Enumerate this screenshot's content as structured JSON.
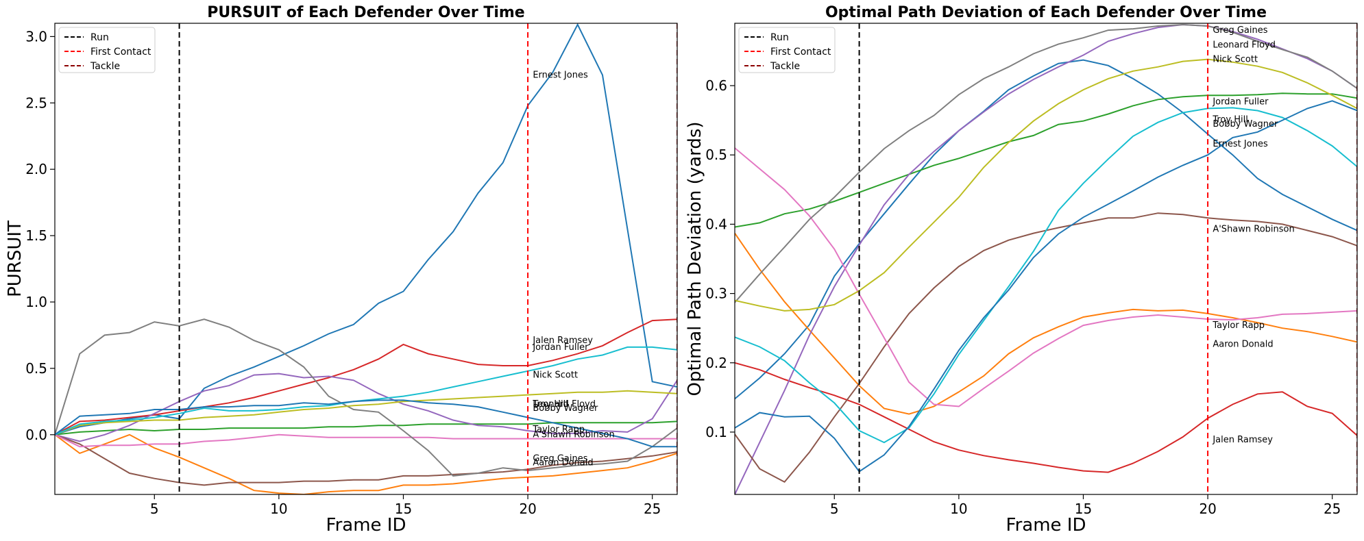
{
  "chart_data": [
    {
      "type": "line",
      "title": "PURSUIT of Each Defender Over Time",
      "xlabel": "Frame ID",
      "ylabel": "PURSUIT",
      "xlim": [
        1,
        26
      ],
      "ylim": [
        -0.45,
        3.1
      ],
      "xticks": [
        5,
        10,
        15,
        20,
        25
      ],
      "yticks": [
        0.0,
        0.5,
        1.0,
        1.5,
        2.0,
        2.5,
        3.0
      ],
      "ytick_labels": [
        "0.0",
        "0.5",
        "1.0",
        "1.5",
        "2.0",
        "2.5",
        "3.0"
      ],
      "legend": {
        "placement": "top-left",
        "entries": [
          {
            "label": "Run",
            "color": "#000000"
          },
          {
            "label": "First Contact",
            "color": "#ff0000"
          },
          {
            "label": "Tackle",
            "color": "#8b0000"
          }
        ]
      },
      "vlines": [
        {
          "label": "Run",
          "x": 6,
          "color": "#000000"
        },
        {
          "label": "First Contact",
          "x": 20,
          "color": "#ff0000"
        },
        {
          "label": "Tackle",
          "x": 26,
          "color": "#8b0000"
        }
      ],
      "x": [
        1,
        2,
        3,
        4,
        5,
        6,
        7,
        8,
        9,
        10,
        11,
        12,
        13,
        14,
        15,
        16,
        17,
        18,
        19,
        20,
        21,
        22,
        23,
        24,
        25,
        26
      ],
      "series": [
        {
          "color": "#1f77b4",
          "values": [
            0,
            0.06,
            0.09,
            0.12,
            0.15,
            0.12,
            0.35,
            0.44,
            0.51,
            0.59,
            0.67,
            0.76,
            0.83,
            0.99,
            1.08,
            1.32,
            1.53,
            1.82,
            2.05,
            2.48,
            2.73,
            3.09,
            2.71,
            1.55,
            0.4,
            0.36
          ]
        },
        {
          "color": "#ff7f0e",
          "values": [
            0,
            -0.14,
            -0.07,
            0.0,
            -0.1,
            -0.17,
            -0.25,
            -0.33,
            -0.42,
            -0.44,
            -0.45,
            -0.43,
            -0.42,
            -0.42,
            -0.38,
            -0.38,
            -0.37,
            -0.35,
            -0.33,
            -0.32,
            -0.31,
            -0.29,
            -0.27,
            -0.25,
            -0.2,
            -0.14
          ]
        },
        {
          "color": "#2ca02c",
          "values": [
            0,
            0.02,
            0.03,
            0.04,
            0.03,
            0.04,
            0.04,
            0.05,
            0.05,
            0.05,
            0.05,
            0.06,
            0.06,
            0.07,
            0.07,
            0.08,
            0.08,
            0.08,
            0.08,
            0.08,
            0.09,
            0.09,
            0.09,
            0.09,
            0.09,
            0.1
          ]
        },
        {
          "color": "#d62728",
          "values": [
            0,
            0.1,
            0.11,
            0.13,
            0.15,
            0.18,
            0.21,
            0.24,
            0.28,
            0.33,
            0.38,
            0.43,
            0.49,
            0.57,
            0.68,
            0.61,
            0.57,
            0.53,
            0.52,
            0.52,
            0.56,
            0.61,
            0.67,
            0.77,
            0.86,
            0.87
          ]
        },
        {
          "color": "#9467bd",
          "values": [
            0,
            -0.05,
            0.0,
            0.07,
            0.16,
            0.25,
            0.33,
            0.37,
            0.45,
            0.46,
            0.43,
            0.44,
            0.41,
            0.31,
            0.23,
            0.18,
            0.11,
            0.07,
            0.06,
            0.03,
            0.01,
            0.01,
            0.03,
            0.02,
            0.12,
            0.41
          ]
        },
        {
          "color": "#8c564b",
          "values": [
            0,
            -0.07,
            -0.18,
            -0.29,
            -0.33,
            -0.36,
            -0.38,
            -0.36,
            -0.36,
            -0.36,
            -0.35,
            -0.35,
            -0.34,
            -0.34,
            -0.31,
            -0.31,
            -0.3,
            -0.29,
            -0.28,
            -0.26,
            -0.23,
            -0.21,
            -0.2,
            -0.18,
            -0.16,
            -0.13
          ]
        },
        {
          "color": "#e377c2",
          "values": [
            0,
            -0.09,
            -0.08,
            -0.08,
            -0.07,
            -0.07,
            -0.05,
            -0.04,
            -0.02,
            0.0,
            -0.01,
            -0.02,
            -0.02,
            -0.02,
            -0.02,
            -0.02,
            -0.03,
            -0.03,
            -0.03,
            -0.03,
            -0.03,
            -0.03,
            -0.03,
            -0.03,
            -0.03,
            -0.03
          ]
        },
        {
          "color": "#7f7f7f",
          "values": [
            0,
            0.61,
            0.75,
            0.77,
            0.85,
            0.82,
            0.87,
            0.81,
            0.71,
            0.64,
            0.51,
            0.29,
            0.19,
            0.17,
            0.03,
            -0.12,
            -0.31,
            -0.29,
            -0.25,
            -0.27,
            -0.25,
            -0.23,
            -0.22,
            -0.2,
            -0.09,
            0.05
          ]
        },
        {
          "color": "#bcbd22",
          "values": [
            0,
            0.07,
            0.09,
            0.1,
            0.11,
            0.11,
            0.13,
            0.14,
            0.15,
            0.17,
            0.19,
            0.2,
            0.22,
            0.23,
            0.25,
            0.26,
            0.27,
            0.28,
            0.29,
            0.3,
            0.31,
            0.32,
            0.32,
            0.33,
            0.32,
            0.31
          ]
        },
        {
          "color": "#17becf",
          "values": [
            0,
            0.08,
            0.1,
            0.11,
            0.13,
            0.16,
            0.2,
            0.18,
            0.18,
            0.19,
            0.21,
            0.22,
            0.25,
            0.27,
            0.29,
            0.32,
            0.36,
            0.4,
            0.44,
            0.48,
            0.52,
            0.57,
            0.6,
            0.66,
            0.66,
            0.64
          ]
        },
        {
          "color": "#1f77b4",
          "values": [
            0,
            0.14,
            0.15,
            0.16,
            0.19,
            0.19,
            0.21,
            0.21,
            0.22,
            0.22,
            0.24,
            0.23,
            0.25,
            0.26,
            0.26,
            0.24,
            0.23,
            0.21,
            0.17,
            0.13,
            0.09,
            0.05,
            0.01,
            -0.03,
            -0.09,
            -0.09
          ]
        }
      ],
      "annotations": [
        {
          "text": "Ernest Jones",
          "x": 20.2,
          "y": 2.69
        },
        {
          "text": "Jalen Ramsey",
          "x": 20.2,
          "y": 0.69
        },
        {
          "text": "Jordan Fuller",
          "x": 20.2,
          "y": 0.64
        },
        {
          "text": "Nick Scott",
          "x": 20.2,
          "y": 0.43
        },
        {
          "text": "Leonard Floyd",
          "x": 20.2,
          "y": 0.21
        },
        {
          "text": "Troy Hill",
          "x": 20.2,
          "y": 0.21
        },
        {
          "text": "Bobby Wagner",
          "x": 20.2,
          "y": 0.18
        },
        {
          "text": "Taylor Rapp",
          "x": 20.2,
          "y": 0.02
        },
        {
          "text": "A'Shawn Robinson",
          "x": 20.2,
          "y": -0.02
        },
        {
          "text": "Greg Gaines",
          "x": 20.2,
          "y": -0.2
        },
        {
          "text": "Aaron Donald",
          "x": 20.2,
          "y": -0.23
        }
      ]
    },
    {
      "type": "line",
      "title": "Optimal Path Deviation of Each Defender Over Time",
      "xlabel": "Frame ID",
      "ylabel": "Optimal Path Deviation (yards)",
      "xlim": [
        1,
        26
      ],
      "ylim": [
        0.01,
        0.69
      ],
      "xticks": [
        5,
        10,
        15,
        20,
        25
      ],
      "yticks": [
        0.1,
        0.2,
        0.3,
        0.4,
        0.5,
        0.6
      ],
      "ytick_labels": [
        "0.1",
        "0.2",
        "0.3",
        "0.4",
        "0.5",
        "0.6"
      ],
      "legend": {
        "placement": "top-left",
        "entries": [
          {
            "label": "Run",
            "color": "#000000"
          },
          {
            "label": "First Contact",
            "color": "#ff0000"
          },
          {
            "label": "Tackle",
            "color": "#8b0000"
          }
        ]
      },
      "vlines": [
        {
          "label": "Run",
          "x": 6,
          "color": "#000000"
        },
        {
          "label": "First Contact",
          "x": 20,
          "color": "#ff0000"
        },
        {
          "label": "Tackle",
          "x": 26,
          "color": "#8b0000"
        }
      ],
      "x": [
        1,
        2,
        3,
        4,
        5,
        6,
        7,
        8,
        9,
        10,
        11,
        12,
        13,
        14,
        15,
        16,
        17,
        18,
        19,
        20,
        21,
        22,
        23,
        24,
        25,
        26
      ],
      "series": [
        {
          "color": "#1f77b4",
          "values": [
            0.148,
            0.178,
            0.213,
            0.255,
            0.325,
            0.372,
            0.415,
            0.458,
            0.5,
            0.535,
            0.563,
            0.594,
            0.614,
            0.632,
            0.637,
            0.629,
            0.61,
            0.588,
            0.561,
            0.53,
            0.5,
            0.466,
            0.443,
            0.425,
            0.407,
            0.391
          ]
        },
        {
          "color": "#ff7f0e",
          "values": [
            0.387,
            0.335,
            0.288,
            0.247,
            0.207,
            0.167,
            0.134,
            0.126,
            0.137,
            0.158,
            0.181,
            0.213,
            0.236,
            0.252,
            0.266,
            0.272,
            0.277,
            0.275,
            0.276,
            0.271,
            0.265,
            0.258,
            0.25,
            0.245,
            0.238,
            0.23
          ]
        },
        {
          "color": "#2ca02c",
          "values": [
            0.396,
            0.402,
            0.415,
            0.422,
            0.433,
            0.446,
            0.459,
            0.472,
            0.485,
            0.495,
            0.507,
            0.519,
            0.528,
            0.544,
            0.549,
            0.559,
            0.571,
            0.58,
            0.584,
            0.586,
            0.586,
            0.587,
            0.589,
            0.588,
            0.588,
            0.582
          ]
        },
        {
          "color": "#d62728",
          "values": [
            0.2,
            0.19,
            0.176,
            0.164,
            0.153,
            0.14,
            0.122,
            0.104,
            0.086,
            0.074,
            0.066,
            0.06,
            0.055,
            0.049,
            0.044,
            0.042,
            0.055,
            0.072,
            0.093,
            0.12,
            0.14,
            0.155,
            0.158,
            0.137,
            0.127,
            0.095
          ]
        },
        {
          "color": "#9467bd",
          "values": [
            0.01,
            0.085,
            0.16,
            0.24,
            0.31,
            0.37,
            0.428,
            0.472,
            0.505,
            0.535,
            0.562,
            0.588,
            0.609,
            0.627,
            0.644,
            0.664,
            0.675,
            0.684,
            0.688,
            0.686,
            0.678,
            0.667,
            0.653,
            0.639,
            0.621,
            0.596
          ]
        },
        {
          "color": "#8c564b",
          "values": [
            0.097,
            0.047,
            0.028,
            0.071,
            0.122,
            0.17,
            0.223,
            0.271,
            0.308,
            0.339,
            0.362,
            0.377,
            0.387,
            0.395,
            0.402,
            0.409,
            0.409,
            0.416,
            0.414,
            0.409,
            0.406,
            0.404,
            0.4,
            0.391,
            0.382,
            0.369
          ]
        },
        {
          "color": "#e377c2",
          "values": [
            0.51,
            0.48,
            0.45,
            0.412,
            0.364,
            0.299,
            0.236,
            0.172,
            0.14,
            0.137,
            0.163,
            0.188,
            0.214,
            0.235,
            0.254,
            0.261,
            0.266,
            0.269,
            0.266,
            0.263,
            0.262,
            0.265,
            0.27,
            0.271,
            0.273,
            0.275
          ]
        },
        {
          "color": "#7f7f7f",
          "values": [
            0.287,
            0.328,
            0.367,
            0.407,
            0.439,
            0.475,
            0.509,
            0.535,
            0.557,
            0.587,
            0.61,
            0.627,
            0.646,
            0.66,
            0.669,
            0.68,
            0.682,
            0.686,
            0.688,
            0.686,
            0.677,
            0.664,
            0.652,
            0.641,
            0.621,
            0.596
          ]
        },
        {
          "color": "#bcbd22",
          "values": [
            0.29,
            0.282,
            0.275,
            0.277,
            0.284,
            0.304,
            0.33,
            0.367,
            0.403,
            0.439,
            0.482,
            0.518,
            0.549,
            0.574,
            0.594,
            0.61,
            0.621,
            0.627,
            0.635,
            0.638,
            0.634,
            0.628,
            0.619,
            0.604,
            0.586,
            0.567
          ]
        },
        {
          "color": "#17becf",
          "values": [
            0.237,
            0.223,
            0.203,
            0.171,
            0.142,
            0.102,
            0.085,
            0.106,
            0.155,
            0.212,
            0.261,
            0.31,
            0.361,
            0.42,
            0.459,
            0.494,
            0.527,
            0.547,
            0.561,
            0.567,
            0.568,
            0.564,
            0.554,
            0.535,
            0.513,
            0.483
          ]
        },
        {
          "color": "#1f77b4",
          "values": [
            0.106,
            0.128,
            0.122,
            0.123,
            0.091,
            0.043,
            0.067,
            0.108,
            0.162,
            0.218,
            0.265,
            0.305,
            0.352,
            0.386,
            0.41,
            0.429,
            0.448,
            0.468,
            0.485,
            0.5,
            0.525,
            0.533,
            0.55,
            0.567,
            0.578,
            0.564
          ]
        }
      ],
      "annotations": [
        {
          "text": "Greg Gaines",
          "x": 20.2,
          "y": 0.676
        },
        {
          "text": "Leonard Floyd",
          "x": 20.2,
          "y": 0.655
        },
        {
          "text": "Nick Scott",
          "x": 20.2,
          "y": 0.634
        },
        {
          "text": "Jordan Fuller",
          "x": 20.2,
          "y": 0.573
        },
        {
          "text": "Troy Hill",
          "x": 20.2,
          "y": 0.547
        },
        {
          "text": "Bobby Wagner",
          "x": 20.2,
          "y": 0.541
        },
        {
          "text": "Ernest Jones",
          "x": 20.2,
          "y": 0.512
        },
        {
          "text": "A'Shawn Robinson",
          "x": 20.2,
          "y": 0.389
        },
        {
          "text": "Taylor Rapp",
          "x": 20.2,
          "y": 0.25
        },
        {
          "text": "Aaron Donald",
          "x": 20.2,
          "y": 0.223
        },
        {
          "text": "Jalen Ramsey",
          "x": 20.2,
          "y": 0.085
        }
      ]
    }
  ]
}
